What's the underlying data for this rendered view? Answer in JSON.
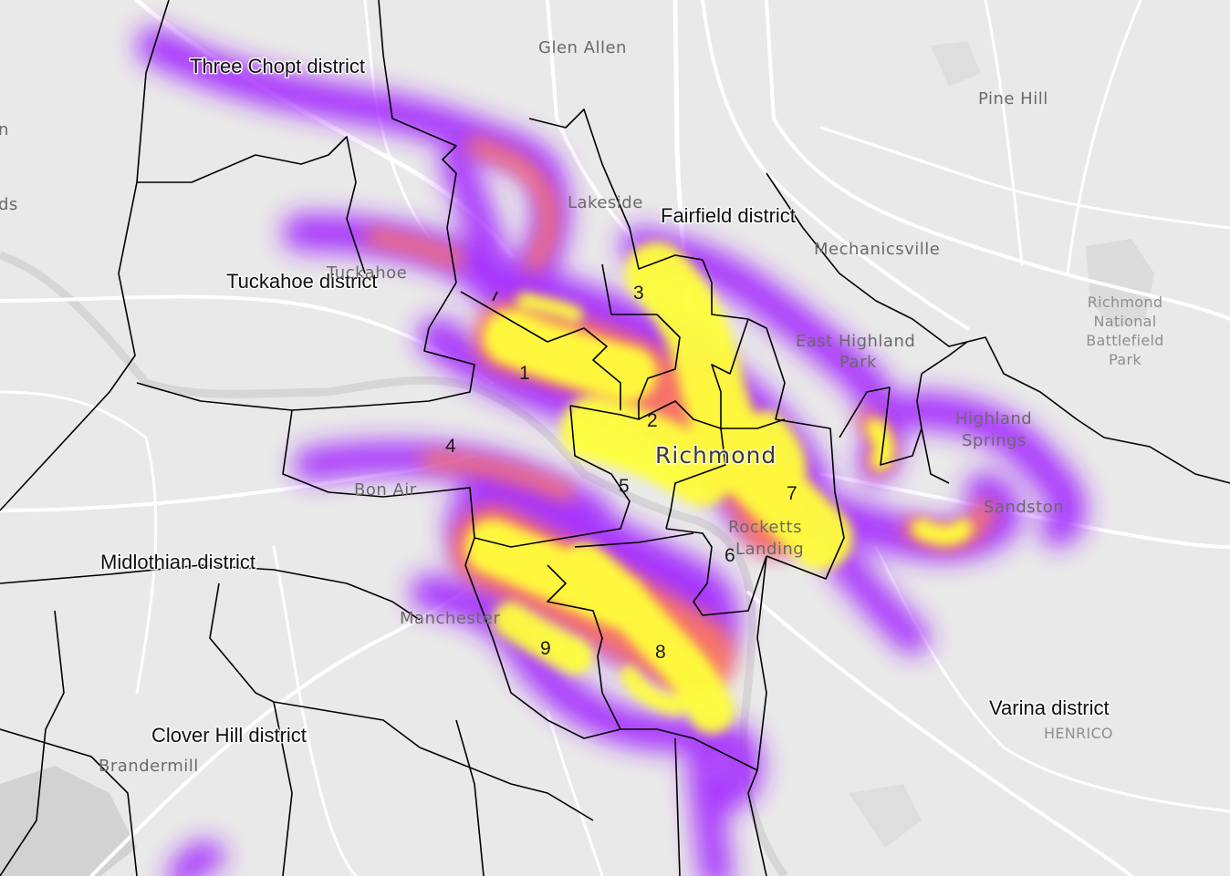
{
  "map": {
    "districts": {
      "three_chopt": "Three Chopt district",
      "fairfield": "Fairfield district",
      "tuckahoe": "Tuckahoe district",
      "midlothian": "Midlothian district",
      "clover_hill": "Clover Hill district",
      "varina": "Varina district"
    },
    "city": "Richmond",
    "places": {
      "glen_allen": "Glen Allen",
      "pine_hill": "Pine Hill",
      "lakeside": "Lakeside",
      "mechanicsville": "Mechanicsville",
      "tuckahoe": "Tuckahoe",
      "east_highland_park_1": "East Highland",
      "east_highland_park_2": "Park",
      "highland_springs_1": "Highland",
      "highland_springs_2": "Springs",
      "sandston": "Sandston",
      "bon_air": "Bon Air",
      "rocketts_landing_1": "Rocketts",
      "rocketts_landing_2": "Landing",
      "manchester": "Manchester",
      "brandermill": "Brandermill",
      "henrico": "HENRICO",
      "edge_n": "n",
      "edge_ds": "ds"
    },
    "park": {
      "line1": "Richmond",
      "line2": "National",
      "line3": "Battlefield",
      "line4": "Park"
    },
    "council_districts": [
      "1",
      "2",
      "3",
      "4",
      "5",
      "6",
      "7",
      "8",
      "9"
    ],
    "colors": {
      "background": "#e9e9e9",
      "road": "#ffffff",
      "boundary": "#000000",
      "heat_low": "#a020ff",
      "heat_mid": "#ff7a5c",
      "heat_high": "#ffff3a"
    }
  }
}
